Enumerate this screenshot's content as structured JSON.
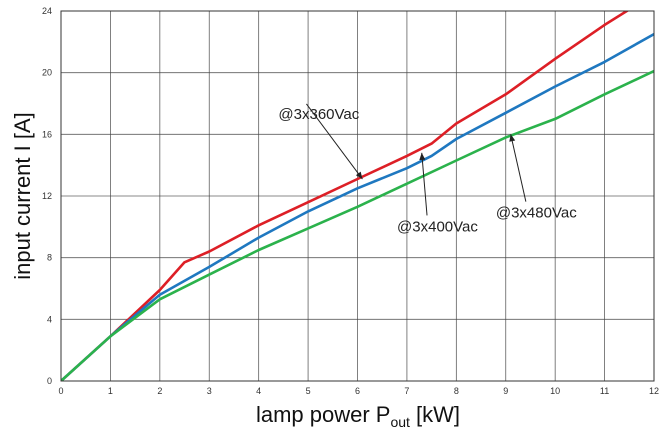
{
  "chart_data": {
    "type": "line",
    "xlabel_main": "lamp  power P",
    "xlabel_sub": "out",
    "xlabel_unit": " [kW]",
    "ylabel": "input current I [A]",
    "xlim": [
      0,
      12
    ],
    "ylim": [
      0,
      24
    ],
    "grid": true,
    "x_ticks": [
      "0",
      "1",
      "2",
      "3",
      "4",
      "5",
      "6",
      "7",
      "8",
      "9",
      "10",
      "11",
      "12"
    ],
    "y_ticks": [
      "0",
      "4",
      "8",
      "12",
      "16",
      "20",
      "24"
    ],
    "series": [
      {
        "name": "@3x360Vac",
        "color": "#dd1f26",
        "points": [
          [
            0,
            0
          ],
          [
            1,
            2.9
          ],
          [
            2,
            5.9
          ],
          [
            2.5,
            7.7
          ],
          [
            3,
            8.4
          ],
          [
            4,
            10.1
          ],
          [
            5,
            11.6
          ],
          [
            6,
            13.1
          ],
          [
            7,
            14.6
          ],
          [
            7.5,
            15.4
          ],
          [
            8,
            16.7
          ],
          [
            9,
            18.6
          ],
          [
            10,
            20.9
          ],
          [
            11,
            23.1
          ],
          [
            11.55,
            24.2
          ]
        ]
      },
      {
        "name": "@3x400Vac",
        "color": "#1f78c0",
        "points": [
          [
            0,
            0
          ],
          [
            1,
            2.9
          ],
          [
            2,
            5.6
          ],
          [
            3,
            7.4
          ],
          [
            4,
            9.3
          ],
          [
            5,
            11.0
          ],
          [
            6,
            12.5
          ],
          [
            7,
            13.8
          ],
          [
            7.5,
            14.6
          ],
          [
            8,
            15.7
          ],
          [
            9,
            17.4
          ],
          [
            10,
            19.1
          ],
          [
            11,
            20.7
          ],
          [
            12,
            22.5
          ]
        ]
      },
      {
        "name": "@3x480Vac",
        "color": "#2bb24c",
        "points": [
          [
            0,
            0
          ],
          [
            1,
            2.9
          ],
          [
            2,
            5.3
          ],
          [
            3,
            6.9
          ],
          [
            4,
            8.5
          ],
          [
            5,
            9.9
          ],
          [
            6,
            11.3
          ],
          [
            7,
            12.8
          ],
          [
            8,
            14.3
          ],
          [
            9,
            15.8
          ],
          [
            10,
            17.0
          ],
          [
            11,
            18.6
          ],
          [
            12,
            20.1
          ]
        ]
      }
    ],
    "annotations": [
      {
        "text": "@3x360Vac",
        "at": [
          6.1,
          13.1
        ],
        "label_at": [
          4.4,
          17.0
        ]
      },
      {
        "text": "@3x400Vac",
        "at": [
          7.3,
          14.8
        ],
        "label_at": [
          6.8,
          9.7
        ]
      },
      {
        "text": "@3x480Vac",
        "at": [
          9.1,
          16.0
        ],
        "label_at": [
          8.8,
          10.6
        ]
      }
    ]
  }
}
